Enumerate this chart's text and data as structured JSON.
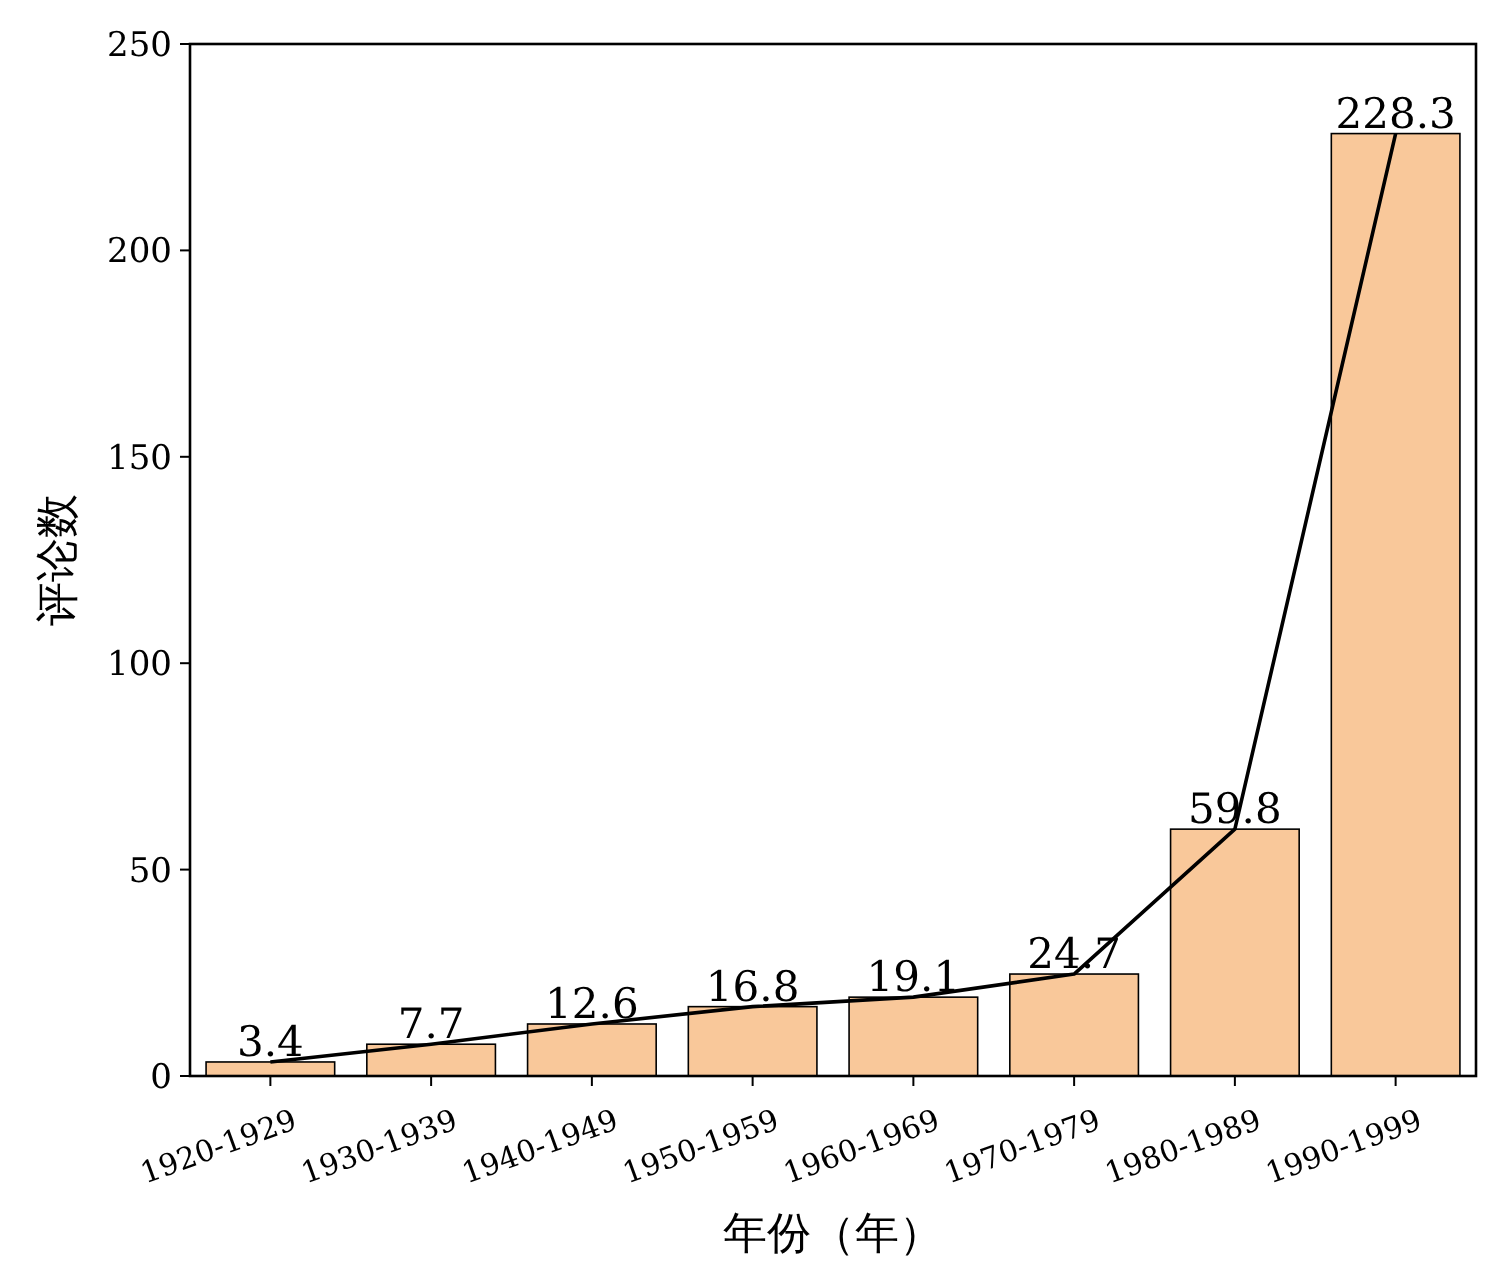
{
  "chart_data": {
    "type": "bar",
    "xlabel": "年份（年）",
    "ylabel": "评论数",
    "categories": [
      "1920-1929",
      "1930-1939",
      "1940-1949",
      "1950-1959",
      "1960-1969",
      "1970-1979",
      "1980-1989",
      "1990-1999"
    ],
    "series": [
      {
        "color": "#f9c89a",
        "values": [
          3.4,
          7.7,
          12.6,
          16.8,
          19.1,
          24.7,
          59.8,
          228.3
        ],
        "value_labels": [
          "3.4",
          "7.7",
          "12.6",
          "16.8",
          "19.1",
          "24.7",
          "59.8",
          "228.3"
        ]
      },
      {
        "type": "line",
        "color": "#000000",
        "values": [
          3.4,
          7.7,
          12.6,
          16.8,
          19.1,
          24.7,
          59.8,
          228.3
        ]
      }
    ],
    "ylim": [
      0,
      250
    ],
    "yticks": [
      0,
      50,
      100,
      150,
      200,
      250
    ]
  }
}
